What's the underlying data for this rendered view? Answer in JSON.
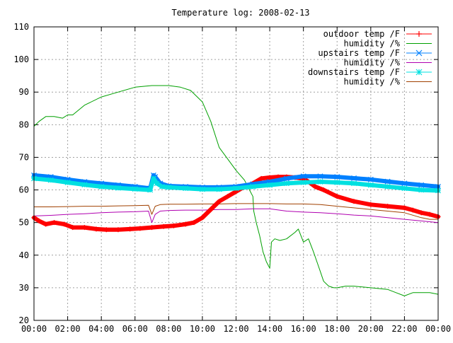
{
  "chart_data": {
    "type": "line",
    "title": "Temperature log: 2008-02-13",
    "xlabel": "",
    "ylabel": "",
    "ylim": [
      20,
      110
    ],
    "yticks": [
      20,
      30,
      40,
      50,
      60,
      70,
      80,
      90,
      100,
      110
    ],
    "xlim": [
      0,
      24
    ],
    "xticks": [
      {
        "v": 0,
        "label": "00:00"
      },
      {
        "v": 2,
        "label": "02:00"
      },
      {
        "v": 4,
        "label": "04:00"
      },
      {
        "v": 6,
        "label": "06:00"
      },
      {
        "v": 8,
        "label": "08:00"
      },
      {
        "v": 10,
        "label": "10:00"
      },
      {
        "v": 12,
        "label": "12:00"
      },
      {
        "v": 14,
        "label": "14:00"
      },
      {
        "v": 16,
        "label": "16:00"
      },
      {
        "v": 18,
        "label": "18:00"
      },
      {
        "v": 20,
        "label": "20:00"
      },
      {
        "v": 22,
        "label": "22:00"
      },
      {
        "v": 24,
        "label": "00:00"
      }
    ],
    "grid": true,
    "legend_position": "top-right",
    "series": [
      {
        "name": "outdoor temp /F",
        "color": "#ff0000",
        "marker": "plus",
        "thick": true,
        "x": [
          0,
          0.3,
          0.7,
          1.2,
          1.8,
          2.3,
          3,
          3.7,
          4.3,
          5,
          5.7,
          6.3,
          7,
          7.7,
          8.3,
          9,
          9.5,
          10,
          10.5,
          11,
          11.5,
          12,
          12.5,
          13,
          13.5,
          14,
          14.5,
          15,
          15.5,
          16,
          16.3,
          16.7,
          17.2,
          18,
          19,
          20,
          21,
          22,
          22.5,
          23,
          23.5,
          24
        ],
        "y": [
          51.5,
          50.5,
          49.5,
          50,
          49.5,
          48.5,
          48.5,
          48,
          47.8,
          47.8,
          48,
          48.2,
          48.5,
          48.8,
          49,
          49.5,
          50,
          51.5,
          54,
          56.5,
          58,
          59.5,
          61,
          62,
          63.5,
          63.8,
          64,
          64,
          63.8,
          63.5,
          62.5,
          61,
          60,
          58,
          56.5,
          55.5,
          55,
          54.5,
          53.8,
          53,
          52.5,
          51.8
        ]
      },
      {
        "name": "humidity /%",
        "color": "#00a000",
        "marker": "none",
        "thick": false,
        "x": [
          0,
          0.3,
          0.7,
          1.2,
          1.7,
          2,
          2.3,
          3,
          4,
          5,
          6,
          7,
          8,
          8.7,
          9.3,
          10,
          10.5,
          11,
          11.5,
          12,
          12.5,
          12.8,
          13,
          13.05,
          13.2,
          13.4,
          13.6,
          13.8,
          14,
          14.1,
          14.3,
          14.6,
          15,
          15.5,
          15.7,
          16,
          16.3,
          16.6,
          16.8,
          17,
          17.2,
          17.5,
          17.8,
          18,
          18.5,
          19,
          20,
          21,
          21.5,
          22,
          22.5,
          23,
          23.5,
          24
        ],
        "y": [
          79.5,
          81,
          82.5,
          82.5,
          82,
          83,
          83,
          86,
          88.5,
          90,
          91.5,
          92,
          92,
          91.5,
          90.5,
          87,
          81,
          73,
          69.5,
          66,
          63,
          60,
          58,
          53.5,
          50,
          46,
          41,
          38,
          36,
          44,
          45,
          44.5,
          45,
          47,
          48,
          44,
          45,
          41,
          38,
          35,
          32,
          30.5,
          30,
          30,
          30.5,
          30.5,
          30,
          29.5,
          28.5,
          27.5,
          28.5,
          28.5,
          28.5,
          28
        ]
      },
      {
        "name": "upstairs temp /F",
        "color": "#0080ff",
        "marker": "cross",
        "thick": true,
        "x": [
          0,
          1,
          2,
          3,
          4,
          5,
          6,
          6.9,
          7.1,
          7.2,
          7.5,
          8,
          9,
          10,
          11,
          12,
          13,
          14,
          15,
          16,
          17,
          18,
          19,
          20,
          21,
          22,
          23,
          24
        ],
        "y": [
          64.5,
          64,
          63.2,
          62.5,
          62,
          61.5,
          61,
          60.5,
          64.5,
          64,
          62,
          61.2,
          61,
          60.8,
          60.8,
          61,
          61.8,
          62.5,
          63.5,
          64.2,
          64.2,
          64,
          63.6,
          63.2,
          62.6,
          62,
          61.5,
          61
        ]
      },
      {
        "name": "humidity /%",
        "color": "#b000b0",
        "marker": "none",
        "thick": false,
        "x": [
          0,
          1,
          2,
          3,
          4,
          5,
          6,
          6.8,
          7,
          7.2,
          7.5,
          8,
          9,
          10,
          11,
          12,
          13,
          14,
          15,
          16,
          17,
          18,
          19,
          20,
          21,
          22,
          23,
          24
        ],
        "y": [
          52,
          52.2,
          52.5,
          52.7,
          53,
          53.2,
          53.3,
          53.5,
          50,
          52.5,
          53.5,
          53.7,
          53.8,
          53.8,
          54,
          54,
          54.2,
          54.2,
          53.5,
          53.2,
          53,
          52.7,
          52.3,
          52,
          51.5,
          51,
          50.5,
          50
        ]
      },
      {
        "name": "downstairs temp /F",
        "color": "#00e0e0",
        "marker": "star",
        "thick": true,
        "x": [
          0,
          1,
          2,
          3,
          4,
          5,
          6,
          6.9,
          7.1,
          7.3,
          7.6,
          8,
          9,
          10,
          11,
          12,
          13,
          14,
          15,
          16,
          17,
          18,
          19,
          20,
          21,
          22,
          23,
          24
        ],
        "y": [
          63.5,
          63,
          62.3,
          61.6,
          61,
          60.6,
          60.3,
          60,
          63.5,
          62,
          61,
          60.8,
          60.5,
          60.2,
          60.2,
          60.5,
          61,
          61.5,
          62,
          62.3,
          62.5,
          62.3,
          62,
          61.5,
          61,
          60.5,
          60,
          59.8
        ]
      },
      {
        "name": "humidity /%",
        "color": "#a04000",
        "marker": "none",
        "thick": false,
        "x": [
          0,
          1,
          2,
          3,
          4,
          5,
          6,
          6.8,
          7,
          7.2,
          7.5,
          8,
          9,
          10,
          11,
          12,
          13,
          14,
          15,
          16,
          17,
          18,
          19,
          20,
          21,
          22,
          23,
          23.5,
          24
        ],
        "y": [
          54.8,
          54.8,
          54.9,
          55,
          55,
          55.1,
          55.2,
          55.3,
          52.5,
          55,
          55.5,
          55.6,
          55.6,
          55.7,
          55.7,
          55.8,
          55.8,
          55.8,
          55.7,
          55.7,
          55.5,
          55,
          54.5,
          54,
          53.5,
          53,
          51.5,
          51,
          51
        ]
      }
    ]
  }
}
